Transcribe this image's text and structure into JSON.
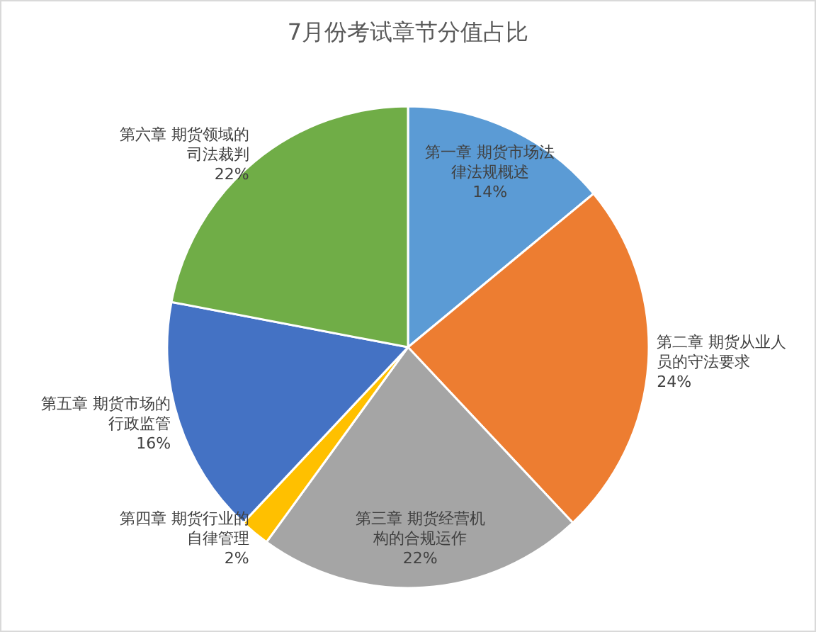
{
  "chart_data": {
    "type": "pie",
    "title": "7月份考试章节分值占比",
    "categories": [
      "第一章 期货市场法律法规概述",
      "第二章 期货从业人员的守法要求",
      "第三章 期货经营机构的合规运作",
      "第四章 期货行业的自律管理",
      "第五章 期货市场的行政监管",
      "第六章 期货领域的司法裁判"
    ],
    "values": [
      14,
      24,
      22,
      2,
      16,
      22
    ],
    "colors": [
      "#5b9bd5",
      "#ed7d31",
      "#a5a5a5",
      "#ffc000",
      "#4472c4",
      "#70ad47"
    ],
    "value_labels": [
      "14%",
      "24%",
      "22%",
      "2%",
      "16%",
      "22%"
    ]
  }
}
